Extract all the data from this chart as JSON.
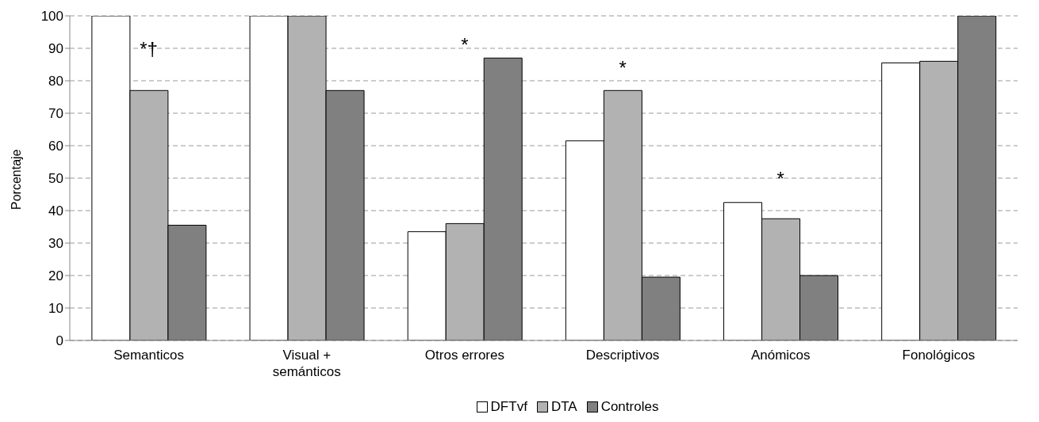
{
  "chart_data": {
    "type": "bar",
    "ylabel": "Porcentaje",
    "categories": [
      "Semanticos",
      "Visual + semánticos",
      "Otros errores",
      "Descriptivos",
      "Anómicos",
      "Fonológicos"
    ],
    "series": [
      {
        "name": "DFTvf",
        "color": "#ffffff",
        "values": [
          100,
          100,
          33.5,
          61.5,
          42.5,
          85.5
        ]
      },
      {
        "name": "DTA",
        "color": "#b2b2b2",
        "values": [
          77,
          100,
          36,
          77,
          37.5,
          86
        ]
      },
      {
        "name": "Controles",
        "color": "#808080",
        "values": [
          35.5,
          77,
          87,
          19.5,
          20,
          100
        ]
      }
    ],
    "ylim": [
      0,
      100
    ],
    "yticks": [
      0,
      10,
      20,
      30,
      40,
      50,
      60,
      70,
      80,
      90,
      100
    ],
    "grid": "y",
    "legend": "bottom",
    "annotations": [
      "*†",
      "*",
      "*",
      "*"
    ]
  }
}
